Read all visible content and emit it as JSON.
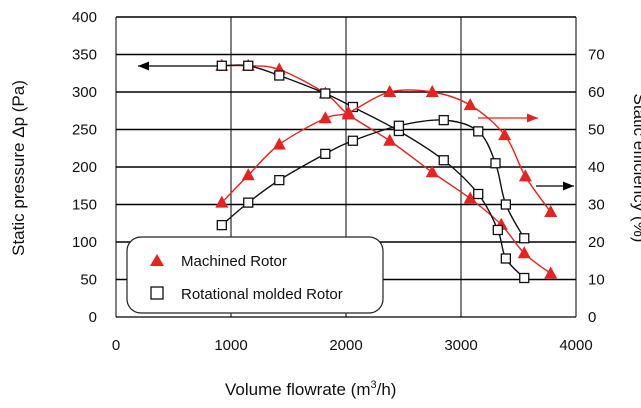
{
  "chart_data": {
    "type": "line",
    "xlabel_main": "Volume flowrate (m",
    "xlabel_sup": "3",
    "xlabel_end": "/h)",
    "ylabel_left": "Static pressure Δp (Pa)",
    "ylabel_right": "Static efficiency (%)",
    "xlim": [
      0,
      4000
    ],
    "ylim_left": [
      0,
      400
    ],
    "ylim_right": [
      0,
      80
    ],
    "x_ticks": [
      "0",
      "1000",
      "2000",
      "3000",
      "4000"
    ],
    "y_left_ticks": [
      "0",
      "50",
      "100",
      "150",
      "200",
      "250",
      "300",
      "350",
      "400"
    ],
    "y_right_ticks": [
      "0",
      "10",
      "20",
      "30",
      "40",
      "50",
      "60",
      "70"
    ],
    "grid": true,
    "legend_position": "bottom-left",
    "series": [
      {
        "name": "Machined Rotor",
        "quantity": "static pressure",
        "axis": "left",
        "color": "#e8221e",
        "marker": "triangle",
        "x": [
          920,
          1150,
          1420,
          1820,
          2020,
          2380,
          2750,
          3080,
          3350,
          3550,
          3780
        ],
        "y": [
          335,
          335,
          330,
          298,
          270,
          235,
          193,
          158,
          123,
          85,
          58
        ]
      },
      {
        "name": "Rotational molded Rotor",
        "quantity": "static pressure",
        "axis": "left",
        "color": "#111111",
        "marker": "square",
        "x": [
          920,
          1150,
          1420,
          1820,
          2060,
          2460,
          2850,
          3150,
          3320,
          3390,
          3550
        ],
        "y": [
          335,
          335,
          322,
          298,
          280,
          248,
          209,
          164,
          116,
          78,
          52
        ]
      },
      {
        "name": "Machined Rotor",
        "quantity": "static efficiency",
        "axis": "right",
        "color": "#e8221e",
        "marker": "triangle",
        "x": [
          920,
          1150,
          1420,
          1820,
          2020,
          2380,
          2750,
          3080,
          3380,
          3560,
          3780
        ],
        "y": [
          30.5,
          37.8,
          46,
          53,
          54.5,
          60,
          60,
          56.5,
          48.5,
          37.5,
          28
        ]
      },
      {
        "name": "Rotational molded Rotor",
        "quantity": "static efficiency",
        "axis": "right",
        "color": "#111111",
        "marker": "square",
        "x": [
          920,
          1150,
          1420,
          1820,
          2060,
          2460,
          2850,
          3150,
          3300,
          3390,
          3550
        ],
        "y": [
          24.5,
          30.5,
          36.5,
          43.5,
          47,
          51,
          52.5,
          49.5,
          41,
          30,
          21
        ]
      }
    ]
  }
}
